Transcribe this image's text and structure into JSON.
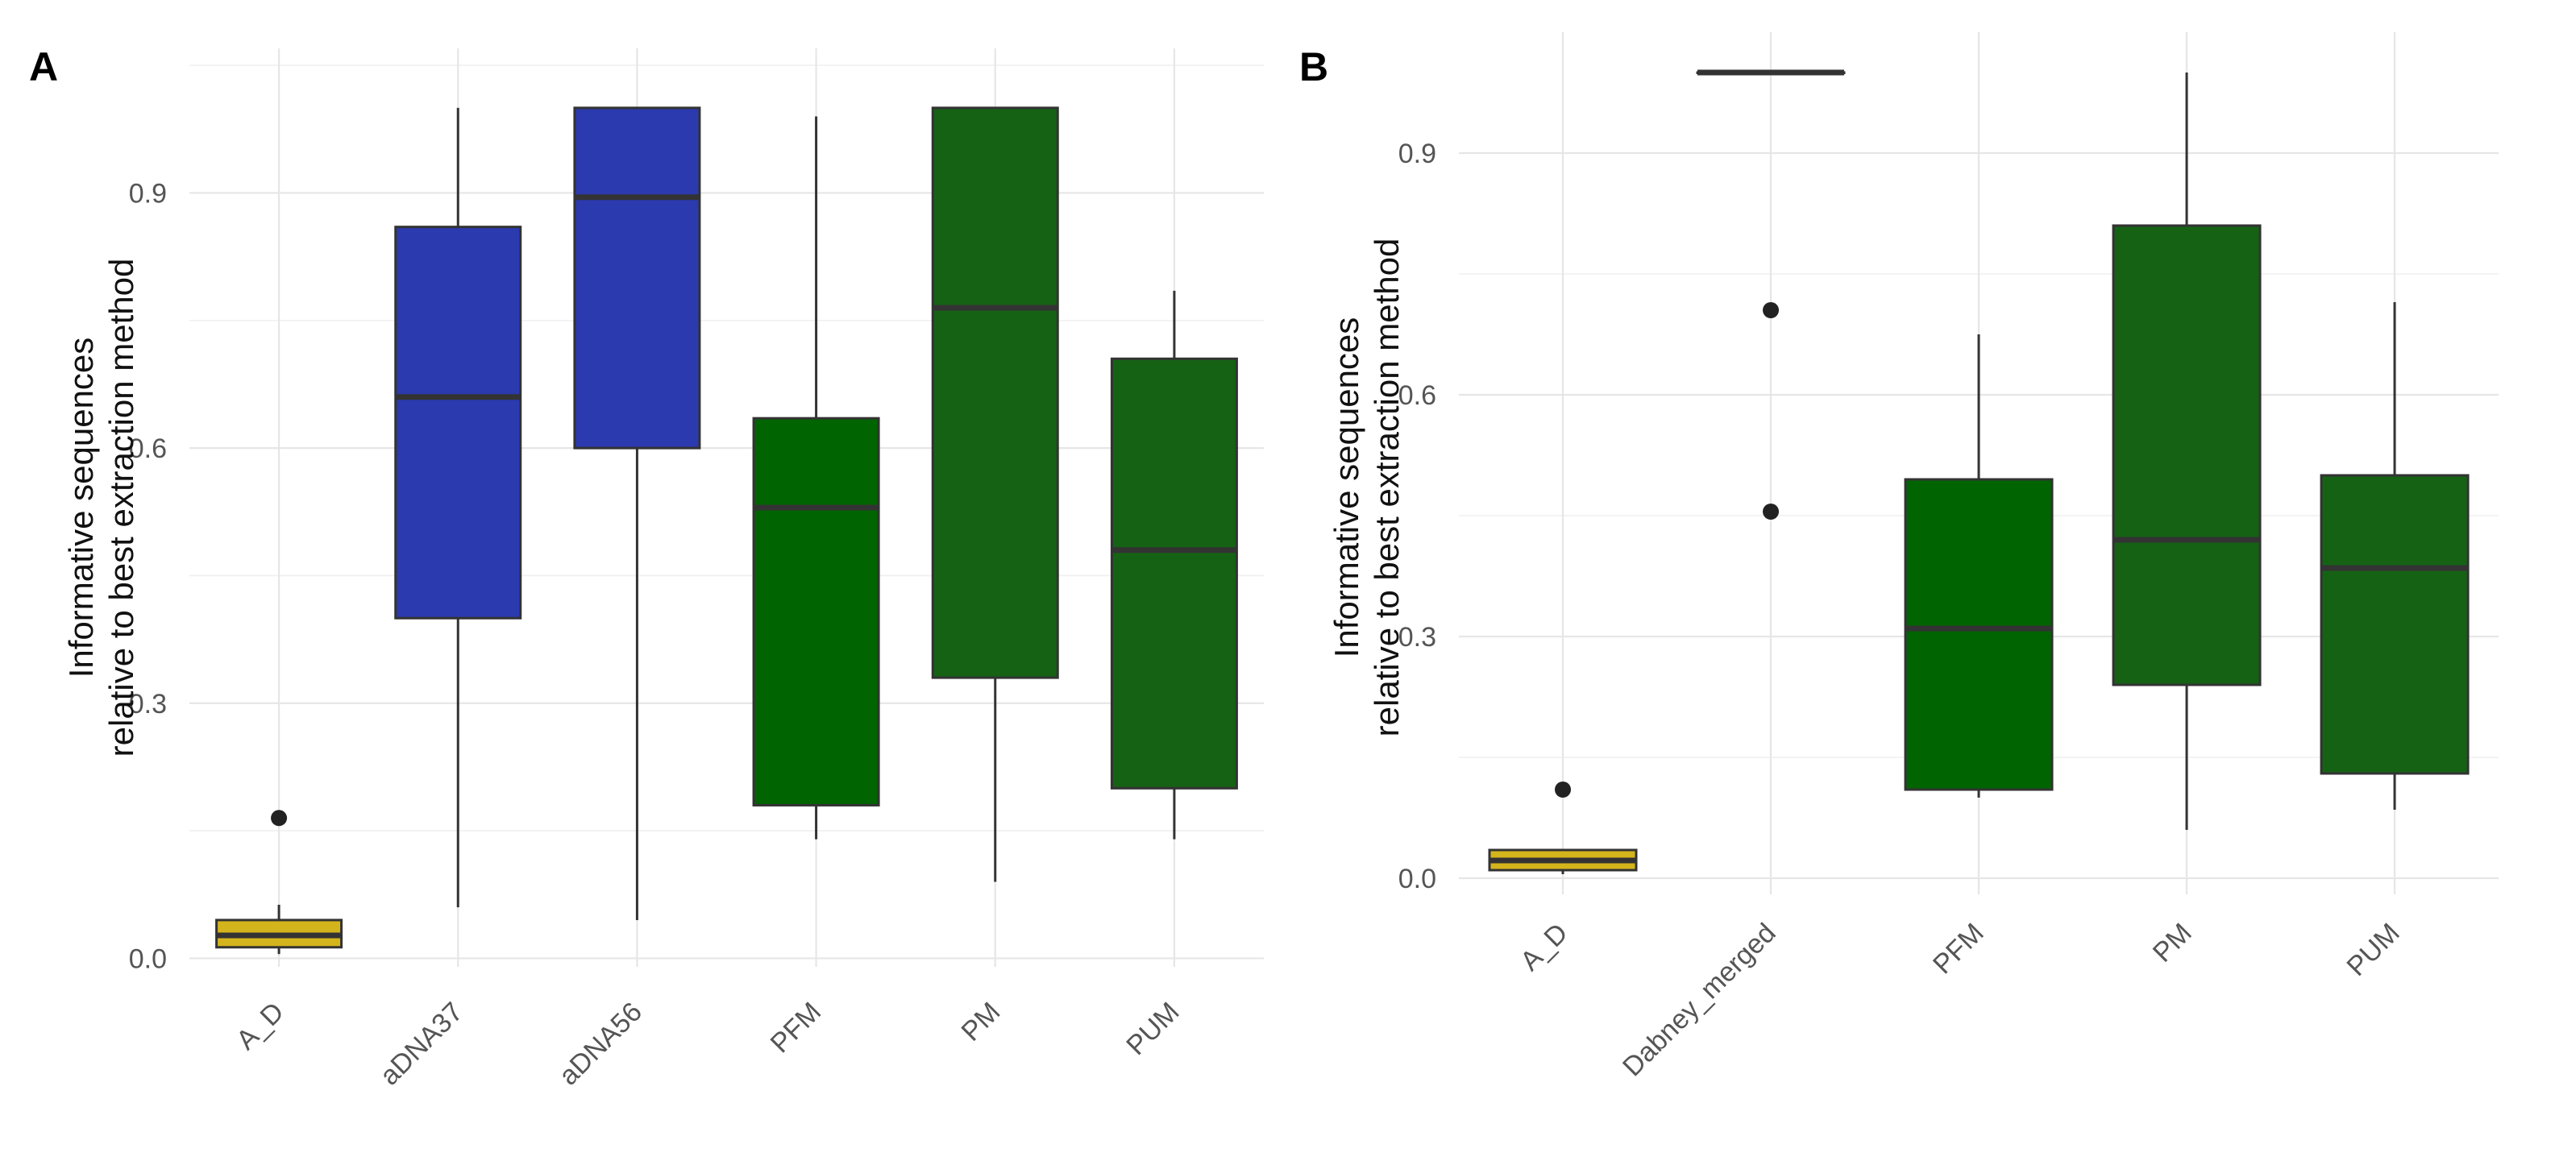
{
  "chart_data": [
    {
      "type": "boxplot",
      "panel": "A",
      "title": "",
      "xlabel": "",
      "ylabel_lines": [
        "Informative sequences",
        "relative to best extraction method"
      ],
      "ylim": [
        -0.01,
        1.07
      ],
      "yticks": [
        0.0,
        0.3,
        0.6,
        0.9
      ],
      "ytick_labels": [
        "0.0",
        "0.3",
        "0.6",
        "0.9"
      ],
      "categories": [
        "A_D",
        "aDNA37",
        "aDNA56",
        "PFM",
        "PM",
        "PUM"
      ],
      "boxes": [
        {
          "category": "A_D",
          "min": 0.005,
          "q1": 0.013,
          "median": 0.027,
          "q3": 0.045,
          "max": 0.063,
          "outliers": [
            0.165
          ],
          "color": "#D4B41C"
        },
        {
          "category": "aDNA37",
          "min": 0.06,
          "q1": 0.4,
          "median": 0.66,
          "q3": 0.86,
          "max": 1.0,
          "outliers": [],
          "color": "#2B3AAE"
        },
        {
          "category": "aDNA56",
          "min": 0.045,
          "q1": 0.6,
          "median": 0.895,
          "q3": 1.0,
          "max": 1.0,
          "outliers": [],
          "color": "#2B3AAE"
        },
        {
          "category": "PFM",
          "min": 0.14,
          "q1": 0.18,
          "median": 0.53,
          "q3": 0.635,
          "max": 0.99,
          "outliers": [],
          "color": "#006400"
        },
        {
          "category": "PM",
          "min": 0.09,
          "q1": 0.33,
          "median": 0.765,
          "q3": 1.0,
          "max": 1.0,
          "outliers": [],
          "color": "#156215"
        },
        {
          "category": "PUM",
          "min": 0.14,
          "q1": 0.2,
          "median": 0.48,
          "q3": 0.705,
          "max": 0.785,
          "outliers": [],
          "color": "#156215"
        }
      ]
    },
    {
      "type": "boxplot",
      "panel": "B",
      "title": "",
      "xlabel": "",
      "ylabel_lines": [
        "Informative sequences",
        "relative to best extraction method"
      ],
      "ylim": [
        -0.02,
        1.05
      ],
      "yticks": [
        0.0,
        0.3,
        0.6,
        0.9
      ],
      "ytick_labels": [
        "0.0",
        "0.3",
        "0.6",
        "0.9"
      ],
      "categories": [
        "A_D",
        "Dabney_merged",
        "PFM",
        "PM",
        "PUM"
      ],
      "boxes": [
        {
          "category": "A_D",
          "min": 0.005,
          "q1": 0.01,
          "median": 0.022,
          "q3": 0.035,
          "max": 0.035,
          "outliers": [
            0.11
          ],
          "color": "#D4B41C"
        },
        {
          "category": "Dabney_merged",
          "min": 1.0,
          "q1": 1.0,
          "median": 1.0,
          "q3": 1.0,
          "max": 1.0,
          "outliers": [
            0.705,
            0.455
          ],
          "color": "#2B3AAE"
        },
        {
          "category": "PFM",
          "min": 0.1,
          "q1": 0.11,
          "median": 0.31,
          "q3": 0.495,
          "max": 0.675,
          "outliers": [],
          "color": "#006400"
        },
        {
          "category": "PM",
          "min": 0.06,
          "q1": 0.24,
          "median": 0.42,
          "q3": 0.81,
          "max": 1.0,
          "outliers": [],
          "color": "#156215"
        },
        {
          "category": "PUM",
          "min": 0.085,
          "q1": 0.13,
          "median": 0.385,
          "q3": 0.5,
          "max": 0.715,
          "outliers": [],
          "color": "#156215"
        }
      ]
    }
  ]
}
